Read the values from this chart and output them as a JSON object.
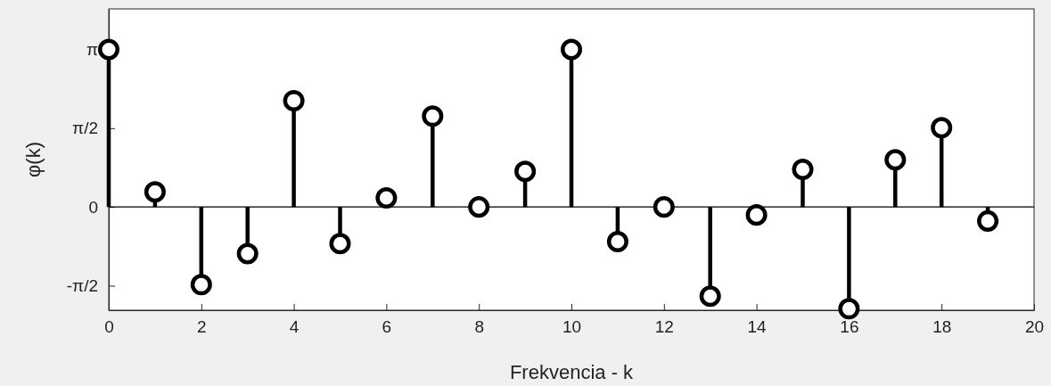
{
  "chart_data": {
    "type": "lollipop",
    "xlabel": "Frekvencia - k",
    "ylabel": "φ(k)",
    "x": [
      0,
      1,
      2,
      3,
      4,
      5,
      6,
      7,
      8,
      9,
      10,
      11,
      12,
      13,
      14,
      15,
      16,
      17,
      18,
      19
    ],
    "series": [
      {
        "color": "#000000",
        "values": [
          3.14,
          0.3,
          -1.55,
          -0.93,
          2.12,
          -0.73,
          0.18,
          1.81,
          0,
          0.71,
          3.14,
          -0.69,
          0,
          -1.78,
          -0.16,
          0.75,
          -2.03,
          0.94,
          1.58,
          -0.28
        ]
      }
    ],
    "xlim": [
      0,
      20
    ],
    "xticks": [
      0,
      2,
      4,
      6,
      8,
      10,
      12,
      14,
      16,
      18,
      20
    ],
    "ylim": [
      -2.06,
      3.95
    ],
    "yticks": [
      {
        "value": -1.5708,
        "label": "-π/2"
      },
      0,
      {
        "value": 1.5708,
        "label": "π/2"
      },
      {
        "value": 3.1416,
        "label": "π"
      }
    ],
    "ref_lines": [
      {
        "axis": "y",
        "value": 0,
        "color": "#000000"
      }
    ],
    "marker": "circle",
    "grid": false
  }
}
